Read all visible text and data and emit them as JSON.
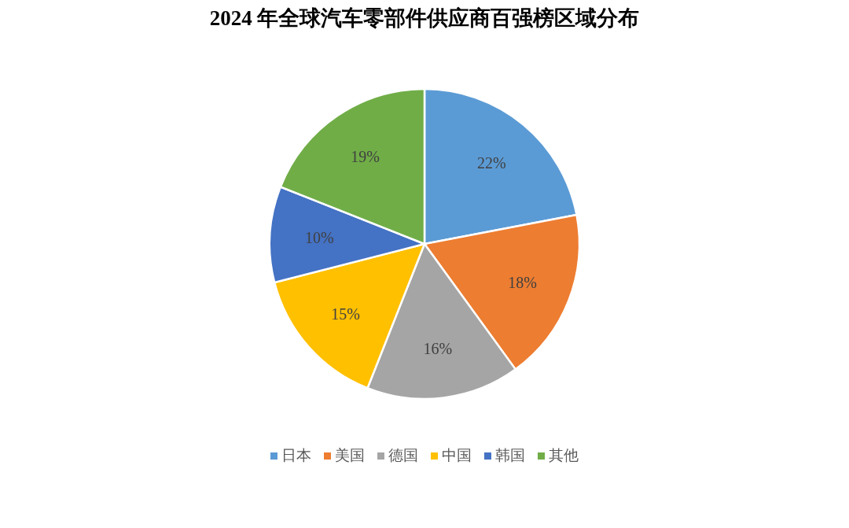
{
  "chart_data": {
    "type": "pie",
    "title": "2024 年全球汽车零部件供应商百强榜区域分布",
    "categories": [
      "日本",
      "美国",
      "德国",
      "中国",
      "韩国",
      "其他"
    ],
    "values": [
      22,
      18,
      16,
      15,
      10,
      19
    ],
    "colors": [
      "#5b9bd5",
      "#ed7d31",
      "#a5a5a5",
      "#ffc000",
      "#4472c4",
      "#70ad47"
    ],
    "value_labels": [
      "22%",
      "18%",
      "16%",
      "15%",
      "10%",
      "19%"
    ],
    "legend": "bottom"
  }
}
